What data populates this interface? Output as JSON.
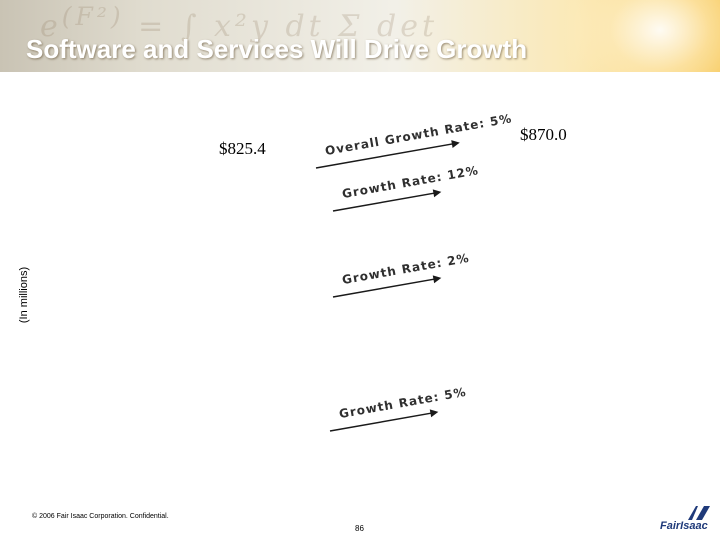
{
  "slide": {
    "title": "Software and Services Will Drive Growth",
    "ylabel": "(In millions)",
    "footer_copyright": "© 2006 Fair Isaac Corporation. Confidential.",
    "page_number": "86",
    "logo_text": "FairIsaac"
  },
  "chart_data": {
    "type": "bar",
    "title": "Software and Services Will Drive Growth",
    "ylabel": "(In millions)",
    "xlabel": "",
    "totals": [
      825.4,
      870.0
    ],
    "total_labels": [
      "$825.4",
      "$870.0"
    ],
    "annotations": [
      {
        "text": "Overall Growth Rate: 5%",
        "rate": 5
      },
      {
        "text": "Growth Rate: 12%",
        "rate": 12
      },
      {
        "text": "Growth Rate: 2%",
        "rate": 2
      },
      {
        "text": "Growth Rate: 5%",
        "rate": 5
      }
    ]
  },
  "colors": {
    "title_text": "#ffffff",
    "annotation_text": "#2f2f2f",
    "arrow": "#1a1a1a",
    "logo": "#1f3a7a"
  }
}
